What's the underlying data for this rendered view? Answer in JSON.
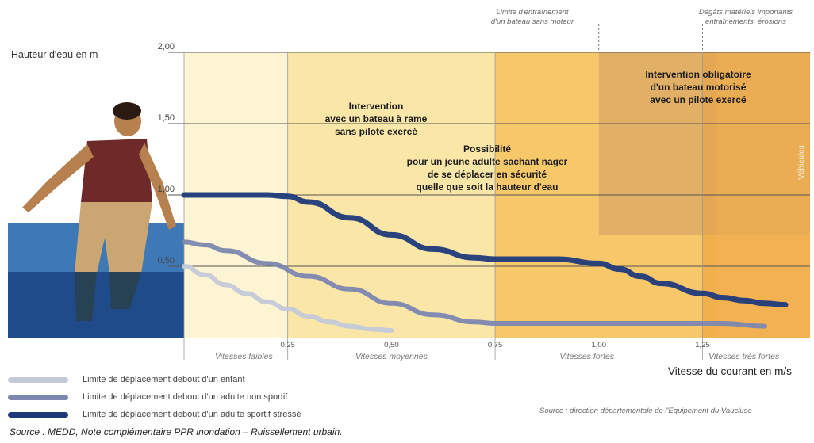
{
  "chart_data": {
    "type": "line",
    "ylabel": "Hauteur d'eau en m",
    "xlabel": "Vitesse du courant en m/s",
    "xlim": [
      0,
      1.45
    ],
    "ylim": [
      0,
      2.0
    ],
    "y_ticks": [
      "2,00",
      "1,50",
      "1,00",
      "0,50"
    ],
    "y_tick_values": [
      2.0,
      1.5,
      1.0,
      0.5
    ],
    "x_ticks": [
      "0,25",
      "0,50",
      "0,75",
      "1,00",
      "1,25"
    ],
    "x_tick_values": [
      0.25,
      0.5,
      0.75,
      1.0,
      1.25
    ],
    "speed_zones": [
      "Vitesses faibles",
      "Vitesses moyennes",
      "Vitesses fortes",
      "Vitesses très fortes"
    ],
    "zone_colors": [
      "#fdf4d3",
      "#fae7a8",
      "#f7c86a",
      "#f2b04d"
    ],
    "series": [
      {
        "name": "Limite de déplacement debout d'un enfant",
        "color": "#c4c9d8",
        "x": [
          0.0,
          0.05,
          0.1,
          0.15,
          0.2,
          0.25,
          0.3,
          0.35,
          0.4,
          0.45,
          0.5
        ],
        "y": [
          0.5,
          0.44,
          0.37,
          0.31,
          0.25,
          0.2,
          0.15,
          0.11,
          0.08,
          0.06,
          0.05
        ]
      },
      {
        "name": "Limite de déplacement debout d'un adulte non sportif",
        "color": "#7c87b0",
        "x": [
          0.0,
          0.05,
          0.1,
          0.2,
          0.3,
          0.4,
          0.5,
          0.6,
          0.7,
          0.75,
          0.85,
          1.0,
          1.1,
          1.2,
          1.3,
          1.4
        ],
        "y": [
          0.67,
          0.65,
          0.61,
          0.52,
          0.43,
          0.34,
          0.24,
          0.16,
          0.11,
          0.1,
          0.1,
          0.1,
          0.1,
          0.1,
          0.1,
          0.08
        ]
      },
      {
        "name": "Limite de déplacement debout d'un adulte sportif stressé",
        "color": "#1f3a7a",
        "x": [
          0.0,
          0.1,
          0.2,
          0.25,
          0.3,
          0.4,
          0.5,
          0.6,
          0.7,
          0.75,
          0.8,
          0.9,
          1.0,
          1.05,
          1.1,
          1.15,
          1.25,
          1.3,
          1.35,
          1.4,
          1.45
        ],
        "y": [
          1.0,
          1.0,
          1.0,
          0.99,
          0.95,
          0.84,
          0.72,
          0.62,
          0.56,
          0.55,
          0.55,
          0.55,
          0.52,
          0.48,
          0.43,
          0.38,
          0.31,
          0.28,
          0.26,
          0.24,
          0.23
        ]
      }
    ],
    "annotations": [
      "Intervention\navec un bateau à rame\nsans pilote exercé",
      "Possibilité\npour un jeune adulte sachant nager\nde se déplacer en sécurité\nquelle que soit la hauteur d'eau",
      "Intervention obligatoire\nd'un bateau motorisé\navec un pilote exercé"
    ],
    "threshold_notes": [
      "Limite d'entraînement\nd'un bateau sans moteur",
      "Dégâts matériels importants\nentraînements, érosions"
    ],
    "side_label": "Véhicules",
    "source_note": "Source : direction départementale de l'Équipement du Vaucluse"
  },
  "footer": {
    "source_main": "Source : MEDD, Note complémentaire PPR inondation – Ruissellement urbain."
  },
  "colors": {
    "water_light": "#3f78b7",
    "water_dark": "#1f4b8a",
    "grid": "#555555"
  }
}
